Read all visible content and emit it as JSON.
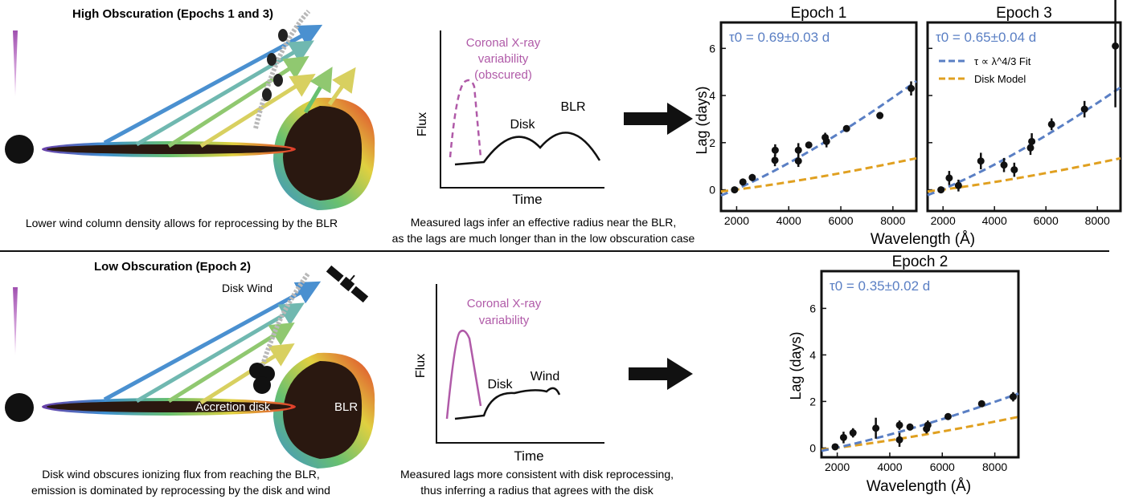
{
  "top": {
    "title": "High Obscuration (Epochs 1 and 3)",
    "caption": "Lower wind column density allows for reprocessing by the BLR",
    "lc_label": [
      "Coronal X-ray",
      "variability",
      "(obscured)"
    ],
    "lc_flux": "Flux",
    "lc_time": "Time",
    "lc_disk": "Disk",
    "lc_blr": "BLR",
    "mid_caption": [
      "Measured lags infer an effective radius near the BLR,",
      "as the lags are much longer than in the low obscuration case"
    ]
  },
  "bottom": {
    "title": "Low Obscuration (Epoch 2)",
    "wind_label": "Disk Wind",
    "disk_label": "Accretion disk",
    "blr_label": "BLR",
    "caption": [
      "Disk wind obscures ionizing flux from reaching the BLR,",
      "emission is dominated by reprocessing by the disk and wind"
    ],
    "lc_label": [
      "Coronal X-ray",
      "variability"
    ],
    "lc_flux": "Flux",
    "lc_time": "Time",
    "lc_disk": "Disk",
    "lc_wind": "Wind",
    "mid_caption": [
      "Measured lags more consistent with disk reprocessing,",
      "thus inferring a radius that agrees with the disk"
    ]
  },
  "legend": {
    "fit": "τ ∝ λ^4/3 Fit",
    "model": "Disk Model"
  },
  "colors": {
    "fit": "#5a7fc4",
    "model": "#e0a020",
    "xray": "#b05aa8",
    "disk": "#2a1810"
  },
  "shared_axis": {
    "ylabel": "Lag (days)",
    "xlabel": "Wavelength (Å)"
  },
  "chart_data": [
    {
      "type": "scatter",
      "title": "Epoch 1",
      "annotation": "τ0 = 0.69±0.03 d",
      "xlim": [
        1400,
        8900
      ],
      "ylim": [
        -0.9,
        7.1
      ],
      "xticks": [
        2000,
        4000,
        6000,
        8000
      ],
      "yticks": [
        0,
        2,
        4,
        6
      ],
      "points": [
        {
          "x": 1920,
          "y": 0.0,
          "e": 0.08
        },
        {
          "x": 2240,
          "y": 0.33,
          "e": 0.15
        },
        {
          "x": 2600,
          "y": 0.52,
          "e": 0.15
        },
        {
          "x": 3470,
          "y": 1.25,
          "e": 0.25
        },
        {
          "x": 3480,
          "y": 1.68,
          "e": 0.25
        },
        {
          "x": 4370,
          "y": 1.22,
          "e": 0.25
        },
        {
          "x": 4370,
          "y": 1.68,
          "e": 0.3
        },
        {
          "x": 4770,
          "y": 1.9,
          "e": 0.12
        },
        {
          "x": 5400,
          "y": 2.22,
          "e": 0.2
        },
        {
          "x": 5450,
          "y": 2.05,
          "e": 0.25
        },
        {
          "x": 6220,
          "y": 2.6,
          "e": 0.12
        },
        {
          "x": 7500,
          "y": 3.15,
          "e": 0.15
        },
        {
          "x": 8700,
          "y": 4.3,
          "e": 0.3
        }
      ],
      "fit_tau0": 0.69,
      "model_tau0": 0.2
    },
    {
      "type": "scatter",
      "title": "Epoch 3",
      "annotation": "τ0 = 0.65±0.04 d",
      "xlim": [
        1400,
        8900
      ],
      "ylim": [
        -0.9,
        7.1
      ],
      "xticks": [
        2000,
        4000,
        6000,
        8000
      ],
      "yticks": [
        0,
        2,
        4,
        6
      ],
      "points": [
        {
          "x": 1920,
          "y": 0.0,
          "e": 0.08
        },
        {
          "x": 2240,
          "y": 0.5,
          "e": 0.3
        },
        {
          "x": 2600,
          "y": 0.18,
          "e": 0.25
        },
        {
          "x": 3470,
          "y": 1.22,
          "e": 0.35
        },
        {
          "x": 4370,
          "y": 1.05,
          "e": 0.3
        },
        {
          "x": 4770,
          "y": 0.85,
          "e": 0.3
        },
        {
          "x": 5400,
          "y": 1.78,
          "e": 0.3
        },
        {
          "x": 5450,
          "y": 2.05,
          "e": 0.35
        },
        {
          "x": 6220,
          "y": 2.78,
          "e": 0.25
        },
        {
          "x": 7500,
          "y": 3.42,
          "e": 0.35
        },
        {
          "x": 8700,
          "y": 6.1,
          "e": 2.6
        }
      ],
      "fit_tau0": 0.65,
      "model_tau0": 0.2
    },
    {
      "type": "scatter",
      "title": "Epoch 2",
      "annotation": "τ0 = 0.35±0.02 d",
      "xlim": [
        1400,
        8900
      ],
      "ylim": [
        -0.4,
        7.6
      ],
      "xticks": [
        2000,
        4000,
        6000,
        8000
      ],
      "yticks": [
        0,
        2,
        4,
        6
      ],
      "points": [
        {
          "x": 1920,
          "y": 0.05,
          "e": 0.08
        },
        {
          "x": 2240,
          "y": 0.45,
          "e": 0.25
        },
        {
          "x": 2600,
          "y": 0.65,
          "e": 0.2
        },
        {
          "x": 3470,
          "y": 0.85,
          "e": 0.45
        },
        {
          "x": 4370,
          "y": 0.35,
          "e": 0.3
        },
        {
          "x": 4370,
          "y": 0.98,
          "e": 0.2
        },
        {
          "x": 4770,
          "y": 0.9,
          "e": 0.15
        },
        {
          "x": 5400,
          "y": 0.82,
          "e": 0.2
        },
        {
          "x": 5450,
          "y": 0.98,
          "e": 0.2
        },
        {
          "x": 6220,
          "y": 1.35,
          "e": 0.12
        },
        {
          "x": 7500,
          "y": 1.9,
          "e": 0.12
        },
        {
          "x": 8700,
          "y": 2.2,
          "e": 0.2
        }
      ],
      "fit_tau0": 0.35,
      "model_tau0": 0.2
    }
  ]
}
